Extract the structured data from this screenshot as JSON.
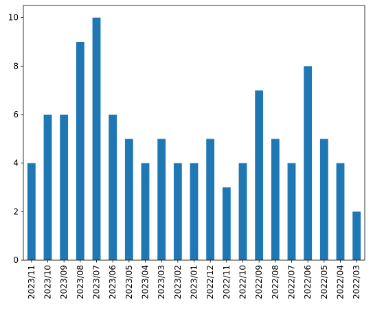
{
  "chart_data": {
    "type": "bar",
    "title": "",
    "xlabel": "",
    "ylabel": "",
    "categories": [
      "2023/11",
      "2023/10",
      "2023/09",
      "2023/08",
      "2023/07",
      "2023/06",
      "2023/05",
      "2023/04",
      "2023/03",
      "2023/02",
      "2023/01",
      "2022/12",
      "2022/11",
      "2022/10",
      "2022/09",
      "2022/08",
      "2022/07",
      "2022/06",
      "2022/05",
      "2022/04",
      "2022/03"
    ],
    "values": [
      4,
      6,
      6,
      9,
      10,
      6,
      5,
      4,
      5,
      4,
      4,
      5,
      3,
      4,
      7,
      5,
      4,
      8,
      5,
      4,
      2
    ],
    "ylim": [
      0,
      10.5
    ],
    "yticks": [
      0,
      2,
      4,
      6,
      8,
      10
    ],
    "grid": false,
    "legend": false,
    "bar_color": "#1f77b4"
  }
}
